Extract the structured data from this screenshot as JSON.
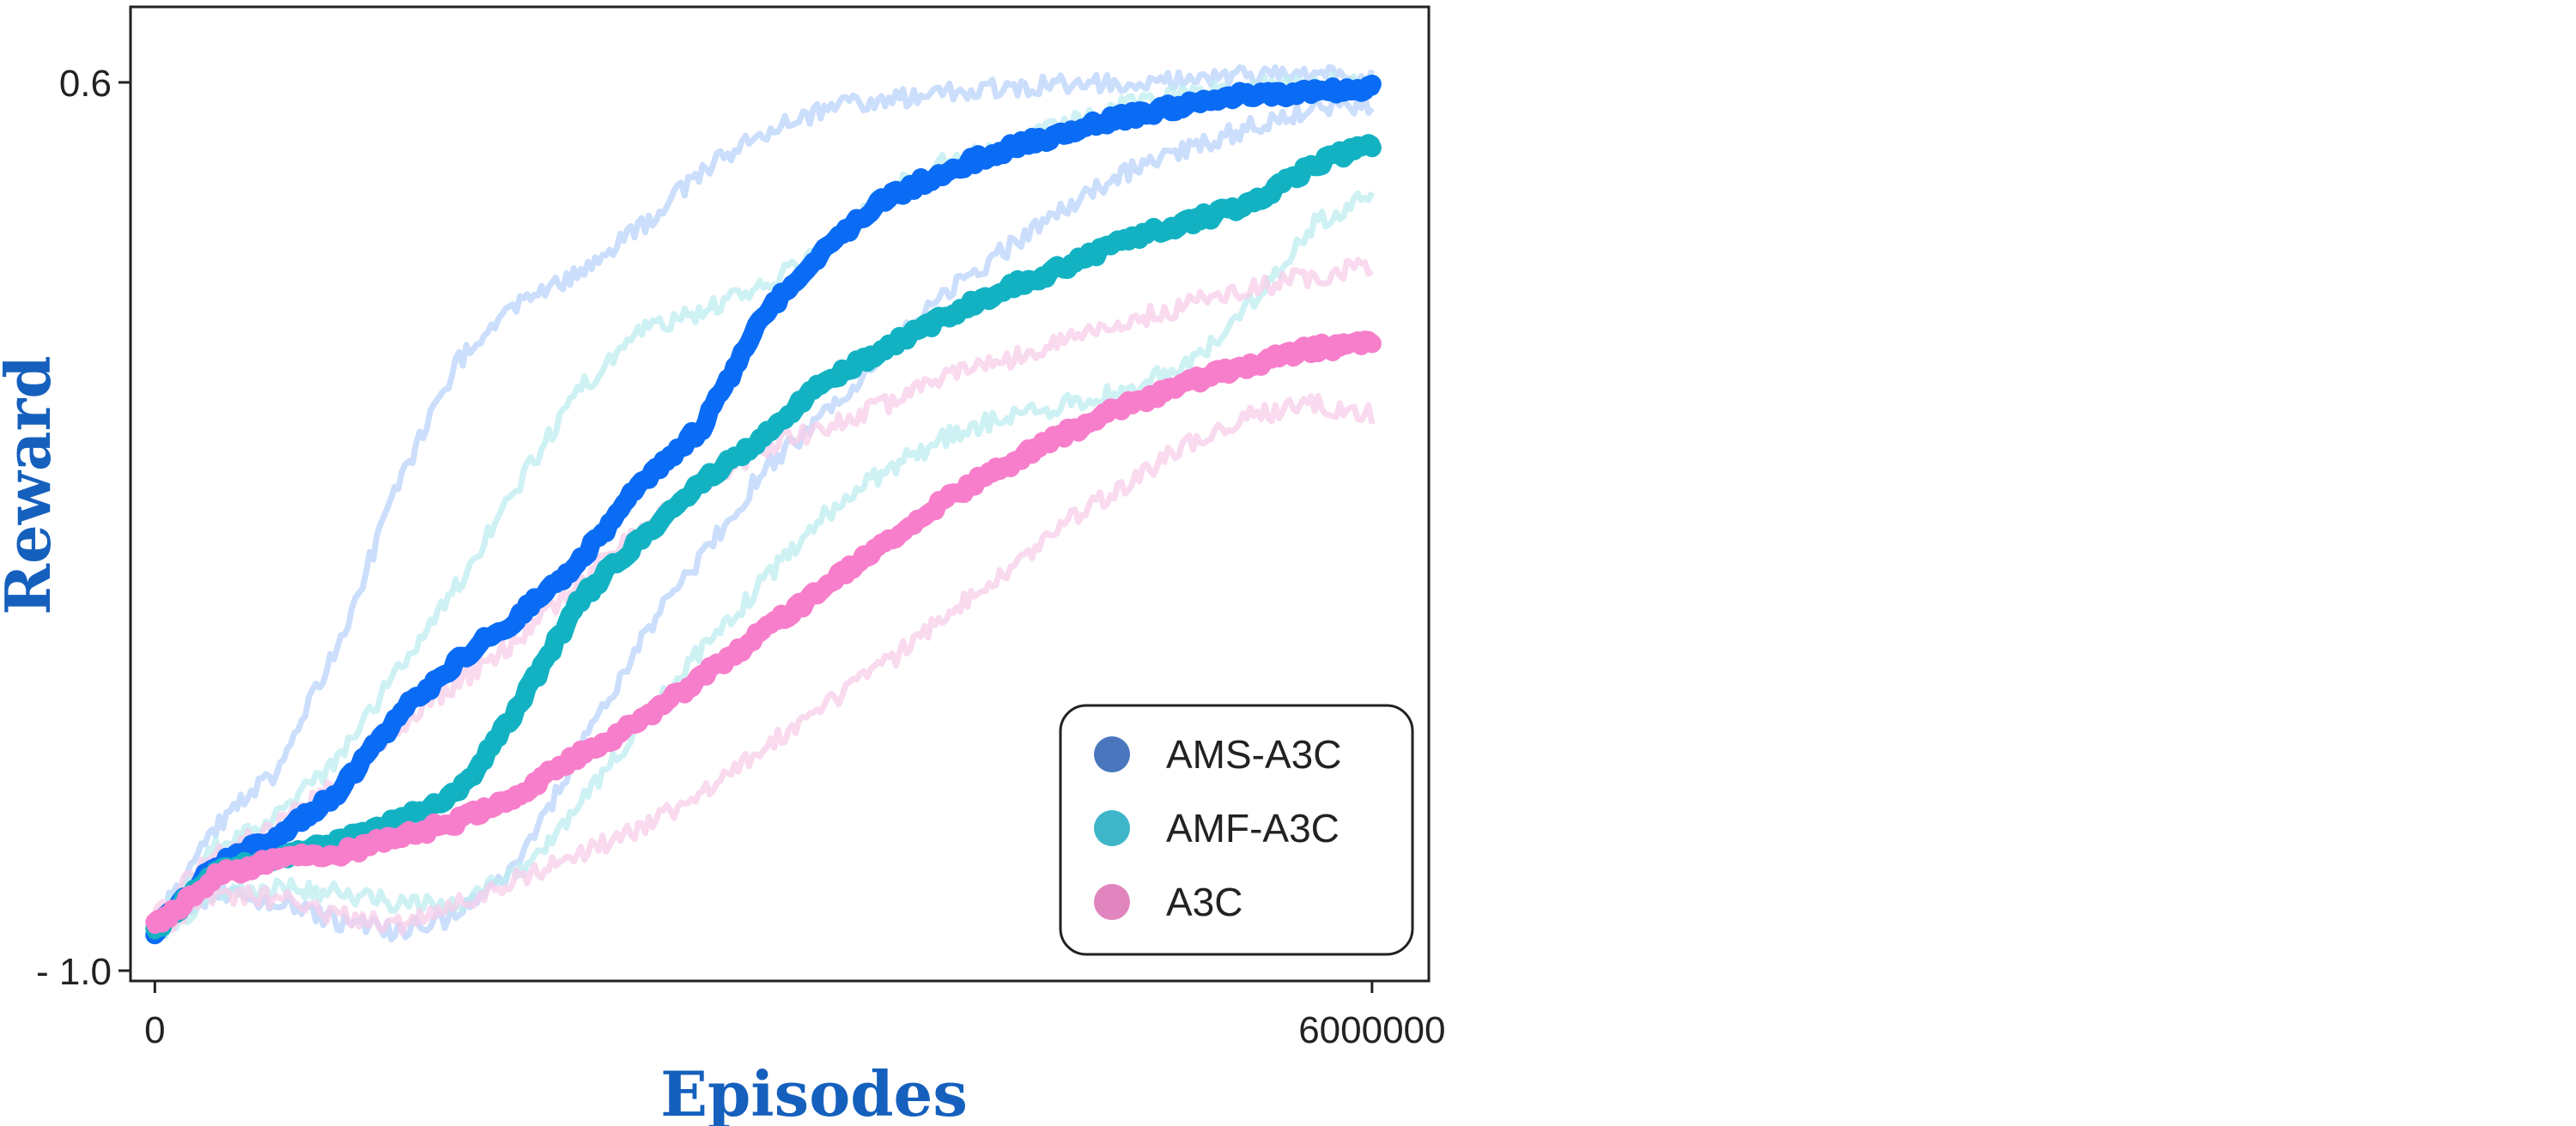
{
  "chart_data": {
    "type": "line",
    "xlabel": "Episodes",
    "ylabel": "Reward",
    "xlim": [
      -120000,
      6280000
    ],
    "ylim": [
      -1.0,
      0.6
    ],
    "x_ticks": [
      0,
      6000000
    ],
    "x_tick_labels": [
      "0",
      "6000000"
    ],
    "y_ticks": [
      -1.0,
      0.6
    ],
    "y_tick_labels": [
      "- 1.0",
      "0.6"
    ],
    "grid": false,
    "legend_position": "bottom-right",
    "x": [
      0,
      300000,
      600000,
      900000,
      1200000,
      1500000,
      1800000,
      2100000,
      2400000,
      2700000,
      3000000,
      3300000,
      3600000,
      3900000,
      4200000,
      4500000,
      4800000,
      5100000,
      5400000,
      5700000,
      6000000
    ],
    "series": [
      {
        "name": "AMS-A3C",
        "color": "#0a6cf5",
        "band_color": "#b9d3fb",
        "values": [
          -0.93,
          -0.81,
          -0.76,
          -0.68,
          -0.54,
          -0.44,
          -0.36,
          -0.26,
          -0.12,
          -0.02,
          0.18,
          0.3,
          0.39,
          0.44,
          0.48,
          0.51,
          0.54,
          0.56,
          0.58,
          0.58,
          0.59
        ],
        "upper": [
          -0.91,
          -0.74,
          -0.64,
          -0.42,
          -0.12,
          0.1,
          0.2,
          0.26,
          0.34,
          0.44,
          0.51,
          0.55,
          0.57,
          0.58,
          0.59,
          0.6,
          0.6,
          0.61,
          0.61,
          0.61,
          0.61
        ],
        "lower": [
          -0.93,
          -0.86,
          -0.88,
          -0.91,
          -0.93,
          -0.9,
          -0.8,
          -0.6,
          -0.4,
          -0.25,
          -0.1,
          0.0,
          0.12,
          0.22,
          0.3,
          0.38,
          0.44,
          0.48,
          0.52,
          0.55,
          0.56
        ]
      },
      {
        "name": "AMF-A3C",
        "color": "#13b2c3",
        "band_color": "#bdecf0",
        "values": [
          -0.93,
          -0.82,
          -0.8,
          -0.77,
          -0.73,
          -0.68,
          -0.52,
          -0.33,
          -0.22,
          -0.12,
          -0.04,
          0.06,
          0.12,
          0.18,
          0.23,
          0.27,
          0.32,
          0.35,
          0.38,
          0.45,
          0.49
        ],
        "upper": [
          -0.91,
          -0.78,
          -0.72,
          -0.62,
          -0.46,
          -0.3,
          -0.12,
          0.05,
          0.15,
          0.19,
          0.23,
          0.3,
          0.4,
          0.46,
          0.48,
          0.53,
          0.56,
          0.58,
          0.59,
          0.6,
          0.6
        ],
        "lower": [
          -0.94,
          -0.86,
          -0.85,
          -0.86,
          -0.88,
          -0.88,
          -0.82,
          -0.7,
          -0.55,
          -0.42,
          -0.3,
          -0.18,
          -0.1,
          -0.04,
          0.0,
          0.02,
          0.05,
          0.09,
          0.2,
          0.34,
          0.4
        ]
      },
      {
        "name": "A3C",
        "color": "#f77ecb",
        "band_color": "#f7cdea",
        "values": [
          -0.92,
          -0.83,
          -0.8,
          -0.79,
          -0.76,
          -0.73,
          -0.68,
          -0.61,
          -0.55,
          -0.47,
          -0.39,
          -0.31,
          -0.23,
          -0.15,
          -0.09,
          -0.03,
          0.02,
          0.06,
          0.09,
          0.12,
          0.13
        ],
        "upper": [
          -0.9,
          -0.79,
          -0.74,
          -0.66,
          -0.56,
          -0.48,
          -0.4,
          -0.3,
          -0.2,
          -0.12,
          -0.06,
          -0.02,
          0.02,
          0.07,
          0.1,
          0.14,
          0.17,
          0.2,
          0.23,
          0.25,
          0.27
        ],
        "lower": [
          -0.93,
          -0.86,
          -0.87,
          -0.9,
          -0.92,
          -0.88,
          -0.83,
          -0.79,
          -0.74,
          -0.68,
          -0.6,
          -0.52,
          -0.45,
          -0.36,
          -0.28,
          -0.19,
          -0.12,
          -0.05,
          0.0,
          0.02,
          0.0
        ]
      }
    ]
  },
  "legend": {
    "items": [
      {
        "label": "AMS-A3C",
        "color": "#4a76bd"
      },
      {
        "label": "AMF-A3C",
        "color": "#3eb5c9"
      },
      {
        "label": "A3C",
        "color": "#e085bd"
      }
    ]
  }
}
